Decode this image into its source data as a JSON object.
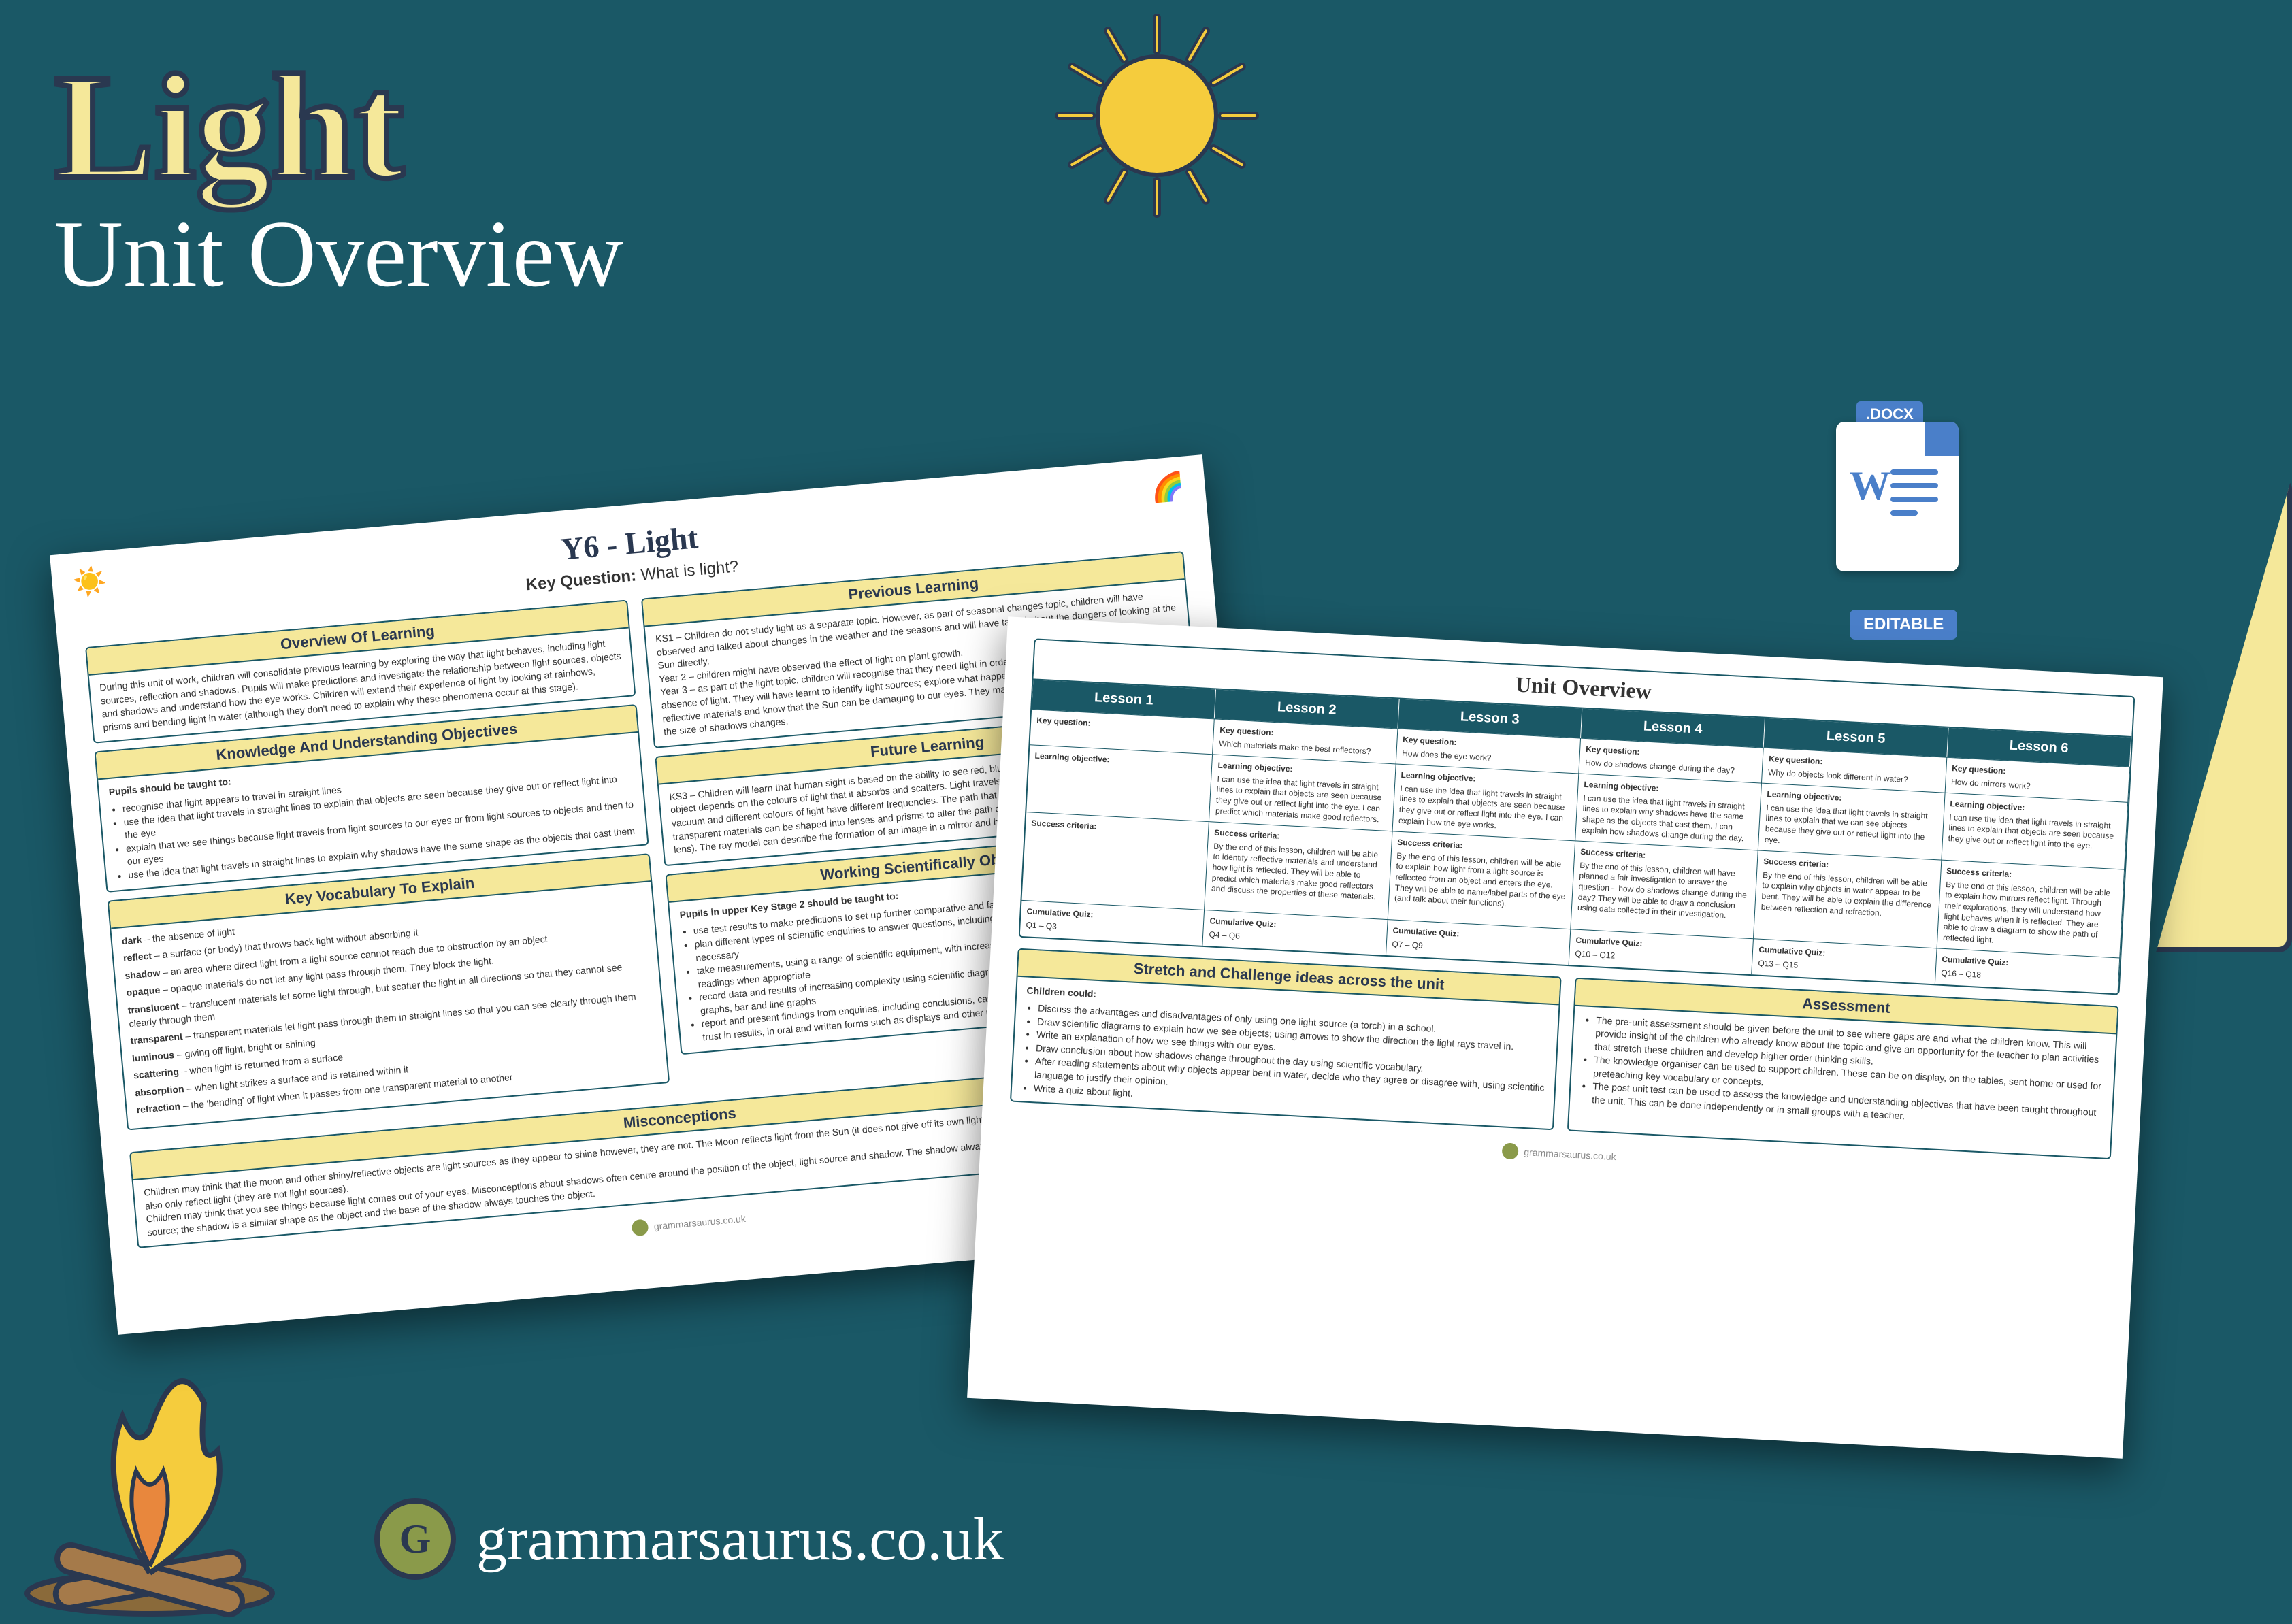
{
  "title": "Light",
  "subtitle": "Unit Overview",
  "docx": {
    "ext": ".DOCX",
    "editable": "EDITABLE"
  },
  "footer": {
    "logo": "G",
    "url": "grammarsaurus.co.uk"
  },
  "colors": {
    "bg": "#1a5866",
    "accent": "#f5e89a",
    "dark": "#2a3850",
    "blue": "#4a7fc9",
    "green": "#8a9a4a"
  },
  "page1": {
    "title": "Y6 - Light",
    "keyq_label": "Key Question:",
    "keyq": "What is light?",
    "overview": {
      "head": "Overview Of Learning",
      "body": "During this unit of work, children will consolidate previous learning by exploring the way that light behaves, including light sources, reflection and shadows. Pupils will make predictions and investigate the relationship between light sources, objects and shadows and understand how the eye works. Children will extend their experience of light by looking at rainbows, prisms and bending light in water (although they don't need to explain why these phenomena occur at this stage)."
    },
    "knowledge": {
      "head": "Knowledge And Understanding Objectives",
      "intro": "Pupils should be taught to:",
      "items": [
        "recognise that light appears to travel in straight lines",
        "use the idea that light travels in straight lines to explain that objects are seen because they give out or reflect light into the eye",
        "explain that we see things because light travels from light sources to our eyes or from light sources to objects and then to our eyes",
        "use the idea that light travels in straight lines to explain why shadows have the same shape as the objects that cast them"
      ]
    },
    "vocab": {
      "head": "Key Vocabulary To Explain",
      "items": [
        "dark – the absence of light",
        "reflect – a surface (or body) that throws back light without absorbing it",
        "shadow – an area where direct light from a light source cannot reach due to obstruction by an object",
        "opaque – opaque materials do not let any light pass through them. They block the light.",
        "translucent – translucent materials let some light through, but scatter the light in all directions so that they cannot see clearly through them",
        "transparent – transparent materials let light pass through them in straight lines so that you can see clearly through them",
        "luminous – giving off light, bright or shining",
        "scattering – when light is returned from a surface",
        "absorption – when light strikes a surface and is retained within it",
        "refraction – the 'bending' of light when it passes from one transparent material to another"
      ]
    },
    "prev": {
      "head": "Previous Learning",
      "body": "KS1 – Children do not study light as a separate topic. However, as part of seasonal changes topic, children will have observed and talked about changes in the weather and the seasons and will have talked about the dangers of looking at the Sun directly.\nYear 2 – children might have observed the effect of light on plant growth.\nYear 3 – as part of the light topic, children will recognise that they need light in order to see things and that dark is the absence of light. They will have learnt to identify light sources; explore what happens when light reflects off mirrors or other reflective materials and know that the Sun can be damaging to our eyes. They may have investigated patterns in the way the size of shadows changes."
    },
    "future": {
      "head": "Future Learning",
      "body": "KS3 – Children will learn that human sight is based on the ability to see red, blue and green light and that the colour of an object depends on the colours of light that it absorbs and scatters. Light travels at 300 million metres per second in a vacuum and different colours of light have different frequencies. The path that light takes can be bent (refracted) and that transparent materials can be shaped into lenses and prisms to alter the path of light by refraction (convex and concave lens). The ray model can describe the formation of an image in a mirror and how objects appear different colours."
    },
    "working": {
      "head": "Working Scientifically Objectives",
      "intro": "Pupils in upper Key Stage 2 should be taught to:",
      "items": [
        "use test results to make predictions to set up further comparative and fair tests",
        "plan different types of scientific enquiries to answer questions, including recognising and controlling variables where necessary",
        "take measurements, using a range of scientific equipment, with increasing accuracy and precision, taking repeat readings when appropriate",
        "record data and results of increasing complexity using scientific diagrams and labels, classification keys, tables, scatter graphs, bar and line graphs",
        "report and present findings from enquiries, including conclusions, causal relationships and explanations of and degree of trust in results, in oral and written forms such as displays and other presentations"
      ]
    },
    "misc": {
      "head": "Misconceptions",
      "body": "Children may think that the moon and other shiny/reflective objects are light sources as they appear to shine however, they are not. The Moon reflects light from the Sun (it does not give off its own light) and cat's eyes, mirrors, reflective material on clothing also only reflect light (they are not light sources).\nChildren may think that you see things because light comes out of your eyes. Misconceptions about shadows often centre around the position of the object, light source and shadow. The shadow always forms on the opposite side of the object from the light source; the shadow is a similar shape as the object and the base of the shadow always touches the object."
    }
  },
  "page2": {
    "title": "Unit Overview",
    "lessons": [
      {
        "num": "Lesson 1",
        "kq": "",
        "lo": "",
        "sc": "",
        "quiz": "Q1 – Q3"
      },
      {
        "num": "Lesson 2",
        "kq": "Which materials make the best reflectors?",
        "lo": "I can use the idea that light travels in straight lines to explain that objects are seen because they give out or reflect light into the eye. I can predict which materials make good reflectors.",
        "sc": "By the end of this lesson, children will be able to identify reflective materials and understand how light is reflected. They will be able to predict which materials make good reflectors and discuss the properties of these materials.",
        "quiz": "Q4 – Q6"
      },
      {
        "num": "Lesson 3",
        "kq": "How does the eye work?",
        "lo": "I can use the idea that light travels in straight lines to explain that objects are seen because they give out or reflect light into the eye. I can explain how the eye works.",
        "sc": "By the end of this lesson, children will be able to explain how light from a light source is reflected from an object and enters the eye. They will be able to name/label parts of the eye (and talk about their functions).",
        "quiz": "Q7 – Q9"
      },
      {
        "num": "Lesson 4",
        "kq": "How do shadows change during the day?",
        "lo": "I can use the idea that light travels in straight lines to explain why shadows have the same shape as the objects that cast them. I can explain how shadows change during the day.",
        "sc": "By the end of this lesson, children will have planned a fair investigation to answer the question – how do shadows change during the day? They will be able to draw a conclusion using data collected in their investigation.",
        "quiz": "Q10 – Q12"
      },
      {
        "num": "Lesson 5",
        "kq": "Why do objects look different in water?",
        "lo": "I can use the idea that light travels in straight lines to explain that we can see objects because they give out or reflect light into the eye.",
        "sc": "By the end of this lesson, children will be able to explain why objects in water appear to be bent. They will be able to explain the difference between reflection and refraction.",
        "quiz": "Q13 – Q15"
      },
      {
        "num": "Lesson 6",
        "kq": "How do mirrors work?",
        "lo": "I can use the idea that light travels in straight lines to explain that objects are seen because they give out or reflect light into the eye.",
        "sc": "By the end of this lesson, children will be able to explain how mirrors reflect light. Through their explorations, they will understand how light behaves when it is reflected. They are able to draw a diagram to show the path of reflected light.",
        "quiz": "Q16 – Q18"
      }
    ],
    "stretch": {
      "head": "Stretch and Challenge ideas across the unit",
      "intro": "Children could:",
      "items": [
        "Discuss the advantages and disadvantages of only using one light source (a torch) in a school.",
        "Draw scientific diagrams to explain how we see objects; using arrows to show the direction the light rays travel in.",
        "Write an explanation of how we see things with our eyes.",
        "Draw conclusion about how shadows change throughout the day using scientific vocabulary.",
        "After reading statements about why objects appear bent in water, decide who they agree or disagree with, using scientific language to justify their opinion.",
        "Write a quiz about light."
      ]
    },
    "assess": {
      "head": "Assessment",
      "items": [
        "The pre-unit assessment should be given before the unit to see where gaps are and what the children know. This will provide insight of the children who already know about the topic and give an opportunity for the teacher to plan activities that stretch these children and develop higher order thinking skills.",
        "The knowledge organiser can be used to support children. These can be on display, on the tables, sent home or used for preteaching key vocabulary or concepts.",
        "The post unit test can be used to assess the knowledge and understanding objectives that have been taught throughout the unit. This can be done independently or in small groups with a teacher."
      ]
    }
  }
}
